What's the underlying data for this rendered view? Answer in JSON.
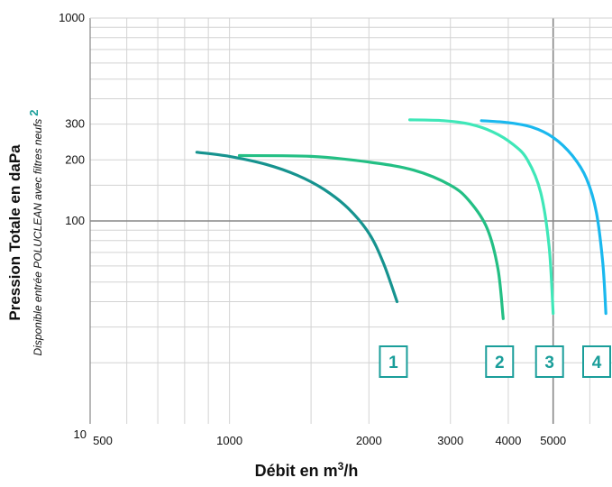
{
  "chart_data": {
    "type": "line",
    "x_scale": "log",
    "y_scale": "log",
    "xlim": [
      500,
      6700
    ],
    "ylim": [
      10,
      1000
    ],
    "x_ticks": [
      {
        "value": 500,
        "label": "500"
      },
      {
        "value": 1000,
        "label": "1000"
      },
      {
        "value": 2000,
        "label": "2000"
      },
      {
        "value": 3000,
        "label": "3000"
      },
      {
        "value": 4000,
        "label": "4000"
      },
      {
        "value": 5000,
        "label": "5000"
      }
    ],
    "y_ticks": [
      {
        "value": 10,
        "label": "10"
      },
      {
        "value": 100,
        "label": "100"
      },
      {
        "value": 200,
        "label": "200"
      },
      {
        "value": 300,
        "label": "300"
      },
      {
        "value": 1000,
        "label": "1000"
      }
    ],
    "x_minor_gridlines": [
      600,
      700,
      800,
      900,
      1500,
      6000
    ],
    "y_minor_gridlines": [
      20,
      30,
      40,
      50,
      60,
      70,
      80,
      90,
      150,
      400,
      500,
      600,
      700,
      800,
      900
    ],
    "x_major_gridlines": [
      5000
    ],
    "y_major_gridlines": [
      100
    ],
    "ylabel": "Pression Totale en daPa",
    "ysublabel_main": "Disponible entrée POLUCLEAN avec filtres neufs",
    "ysublabel_marker": "2",
    "xlabel_main": "Débit en m",
    "xlabel_sup": "3",
    "xlabel_end": "/h",
    "grid": true,
    "series": [
      {
        "name": "1",
        "color": "#16938f",
        "x": [
          850,
          1000,
          1200,
          1400,
          1600,
          1800,
          2000,
          2150,
          2300
        ],
        "y": [
          218,
          208,
          190,
          168,
          143,
          116,
          87,
          62,
          40
        ]
      },
      {
        "name": "2",
        "color": "#23bf84",
        "x": [
          1050,
          1500,
          2000,
          2500,
          3000,
          3300,
          3600,
          3800,
          3900
        ],
        "y": [
          210,
          208,
          195,
          178,
          150,
          125,
          92,
          58,
          33
        ]
      },
      {
        "name": "3",
        "color": "#3fe7b8",
        "x": [
          2450,
          2900,
          3300,
          3700,
          4100,
          4400,
          4700,
          4900,
          5000
        ],
        "y": [
          315,
          312,
          300,
          275,
          238,
          200,
          138,
          75,
          35
        ]
      },
      {
        "name": "4",
        "color": "#1ab8ee",
        "x": [
          3500,
          4000,
          4500,
          5000,
          5500,
          5900,
          6200,
          6400,
          6500
        ],
        "y": [
          312,
          305,
          290,
          258,
          210,
          162,
          110,
          62,
          35
        ]
      }
    ],
    "curve_labels": [
      {
        "text": "1",
        "series": "1"
      },
      {
        "text": "2",
        "series": "2"
      },
      {
        "text": "3",
        "series": "3"
      },
      {
        "text": "4",
        "series": "4"
      }
    ]
  }
}
